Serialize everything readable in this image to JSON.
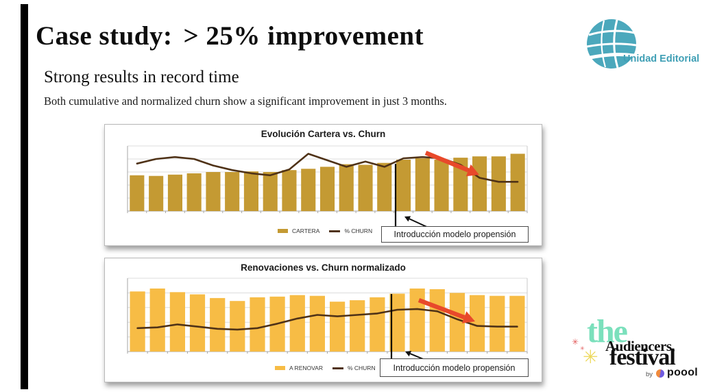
{
  "slide": {
    "title_left": "Case study:",
    "title_right": "> 25% improvement",
    "subtitle": "Strong results in record time",
    "body": "Both cumulative and normalized churn show a significant improvement in just 3 months."
  },
  "brand_top": {
    "name": "Unidad Editorial",
    "color": "#3F9FB5",
    "icon": "globe-icon"
  },
  "brand_bottom": {
    "word_the": "the",
    "word_main": "Audiencers,",
    "word_festival": "festival",
    "by_label": "by",
    "poool_label": "poool",
    "colors": {
      "the": "#7BE0BC",
      "text": "#111111",
      "star_red": "#E25B5B",
      "star_yellow": "#EDD95E",
      "dot_orange": "#F08A3C",
      "dot_purple": "#6F5BE0"
    }
  },
  "chart_data": [
    {
      "type": "bar",
      "subtype": "bar+line combo",
      "title": "Evolución Cartera vs. Churn",
      "legend": [
        "CARTERA",
        "% CHURN"
      ],
      "legend_position": "bottom",
      "grid": true,
      "axis_tick_labels_visible": false,
      "units": "relative height, % of plot area (no numeric axis labels shown in source)",
      "n_points": 21,
      "bar_series": {
        "name": "CARTERA",
        "color": "#C49A33",
        "values": [
          55,
          54,
          56,
          58,
          60,
          60,
          61,
          60,
          63,
          65,
          68,
          72,
          71,
          74,
          79,
          81,
          79,
          82,
          84,
          84,
          88
        ]
      },
      "line_series": {
        "name": "% CHURN",
        "color": "#4F3217",
        "values": [
          73,
          80,
          83,
          80,
          70,
          63,
          58,
          55,
          64,
          88,
          78,
          68,
          76,
          68,
          81,
          83,
          81,
          71,
          51,
          45,
          45
        ]
      },
      "annotation": {
        "label": "Introducción modelo propensión",
        "marker": "vertical black line after period 14, arrow from label box to line"
      },
      "red_arrow_note": "thick red arrow pointing down-right over final periods, highlighting churn decline"
    },
    {
      "type": "bar",
      "subtype": "bar+line combo",
      "title": "Renovaciones vs. Churn normalizado",
      "legend": [
        "A RENOVAR",
        "% CHURN"
      ],
      "legend_position": "bottom",
      "grid": true,
      "axis_tick_labels_visible": false,
      "units": "relative height, % of plot area (no numeric axis labels shown in source)",
      "n_points": 20,
      "bar_series": {
        "name": "A RENOVAR",
        "color": "#F7BC45",
        "values": [
          82,
          86,
          81,
          78,
          73,
          69,
          74,
          75,
          77,
          76,
          68,
          70,
          74,
          79,
          86,
          85,
          80,
          77,
          76,
          76
        ]
      },
      "line_series": {
        "name": "% CHURN",
        "color": "#4F3217",
        "values": [
          32,
          33,
          37,
          34,
          31,
          30,
          32,
          38,
          45,
          50,
          48,
          50,
          52,
          57,
          58,
          55,
          44,
          35,
          34,
          34
        ]
      },
      "annotation": {
        "label": "Introducción modelo propensión",
        "marker": "vertical black line after period 13, arrow from label box to line"
      },
      "red_arrow_note": "thick red arrow pointing down-right after model introduction, highlighting churn decline"
    }
  ]
}
